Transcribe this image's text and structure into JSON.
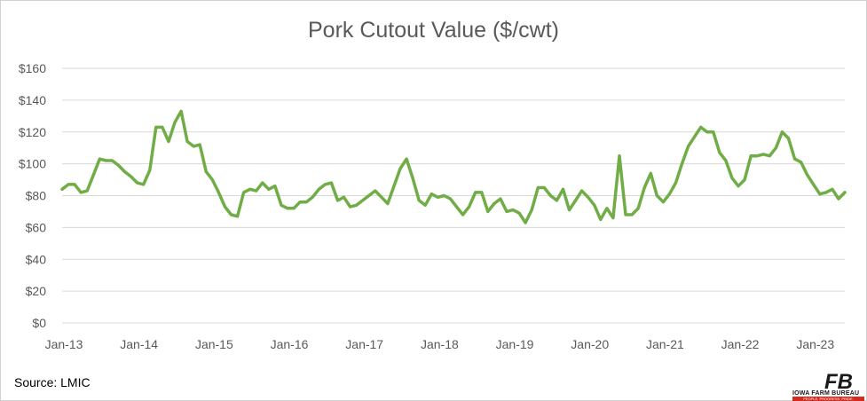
{
  "chart_data": {
    "type": "line",
    "title": "Pork Cutout Value ($/cwt)",
    "xlabel": "",
    "ylabel": "",
    "ylim": [
      0,
      160
    ],
    "yticks": [
      "$0",
      "$20",
      "$40",
      "$60",
      "$80",
      "$100",
      "$120",
      "$140",
      "$160"
    ],
    "yticks_values": [
      0,
      20,
      40,
      60,
      80,
      100,
      120,
      140,
      160
    ],
    "xticks": [
      "Jan-13",
      "Jan-14",
      "Jan-15",
      "Jan-16",
      "Jan-17",
      "Jan-18",
      "Jan-19",
      "Jan-20",
      "Jan-21",
      "Jan-22",
      "Jan-23"
    ],
    "x_start": "Jan-13",
    "x_frequency": "monthly",
    "grid": true,
    "legend": "none",
    "line_color": "#70ad47",
    "series": [
      {
        "values": [
          84,
          87,
          87,
          82,
          83,
          93,
          103,
          102,
          102,
          99,
          95,
          92,
          88,
          87,
          96,
          123,
          123,
          114,
          126,
          133,
          114,
          111,
          112,
          95,
          90,
          82,
          73,
          68,
          67,
          82,
          84,
          83,
          88,
          84,
          86,
          74,
          72,
          72,
          76,
          76,
          79,
          84,
          87,
          88,
          77,
          79,
          73,
          74,
          77,
          80,
          83,
          79,
          75,
          86,
          97,
          103,
          91,
          77,
          74,
          81,
          79,
          80,
          78,
          73,
          68,
          73,
          82,
          82,
          70,
          75,
          78,
          70,
          71,
          69,
          63,
          71,
          85,
          85,
          80,
          77,
          84,
          71,
          77,
          83,
          79,
          74,
          65,
          72,
          66,
          105,
          68,
          68,
          72,
          85,
          94,
          80,
          76,
          81,
          88,
          100,
          111,
          117,
          123,
          120,
          120,
          107,
          102,
          91,
          86,
          90,
          105,
          105,
          106,
          105,
          110,
          120,
          116,
          103,
          101,
          93,
          87,
          81,
          82,
          84,
          78,
          82
        ]
      }
    ],
    "source": "Source: LMIC",
    "logo": {
      "name": "iowa-farm-bureau-logo",
      "mark": "FB",
      "text": "IOWA FARM BUREAU",
      "tagline": "PEOPLE. PROGRESS. PRIDE."
    }
  }
}
